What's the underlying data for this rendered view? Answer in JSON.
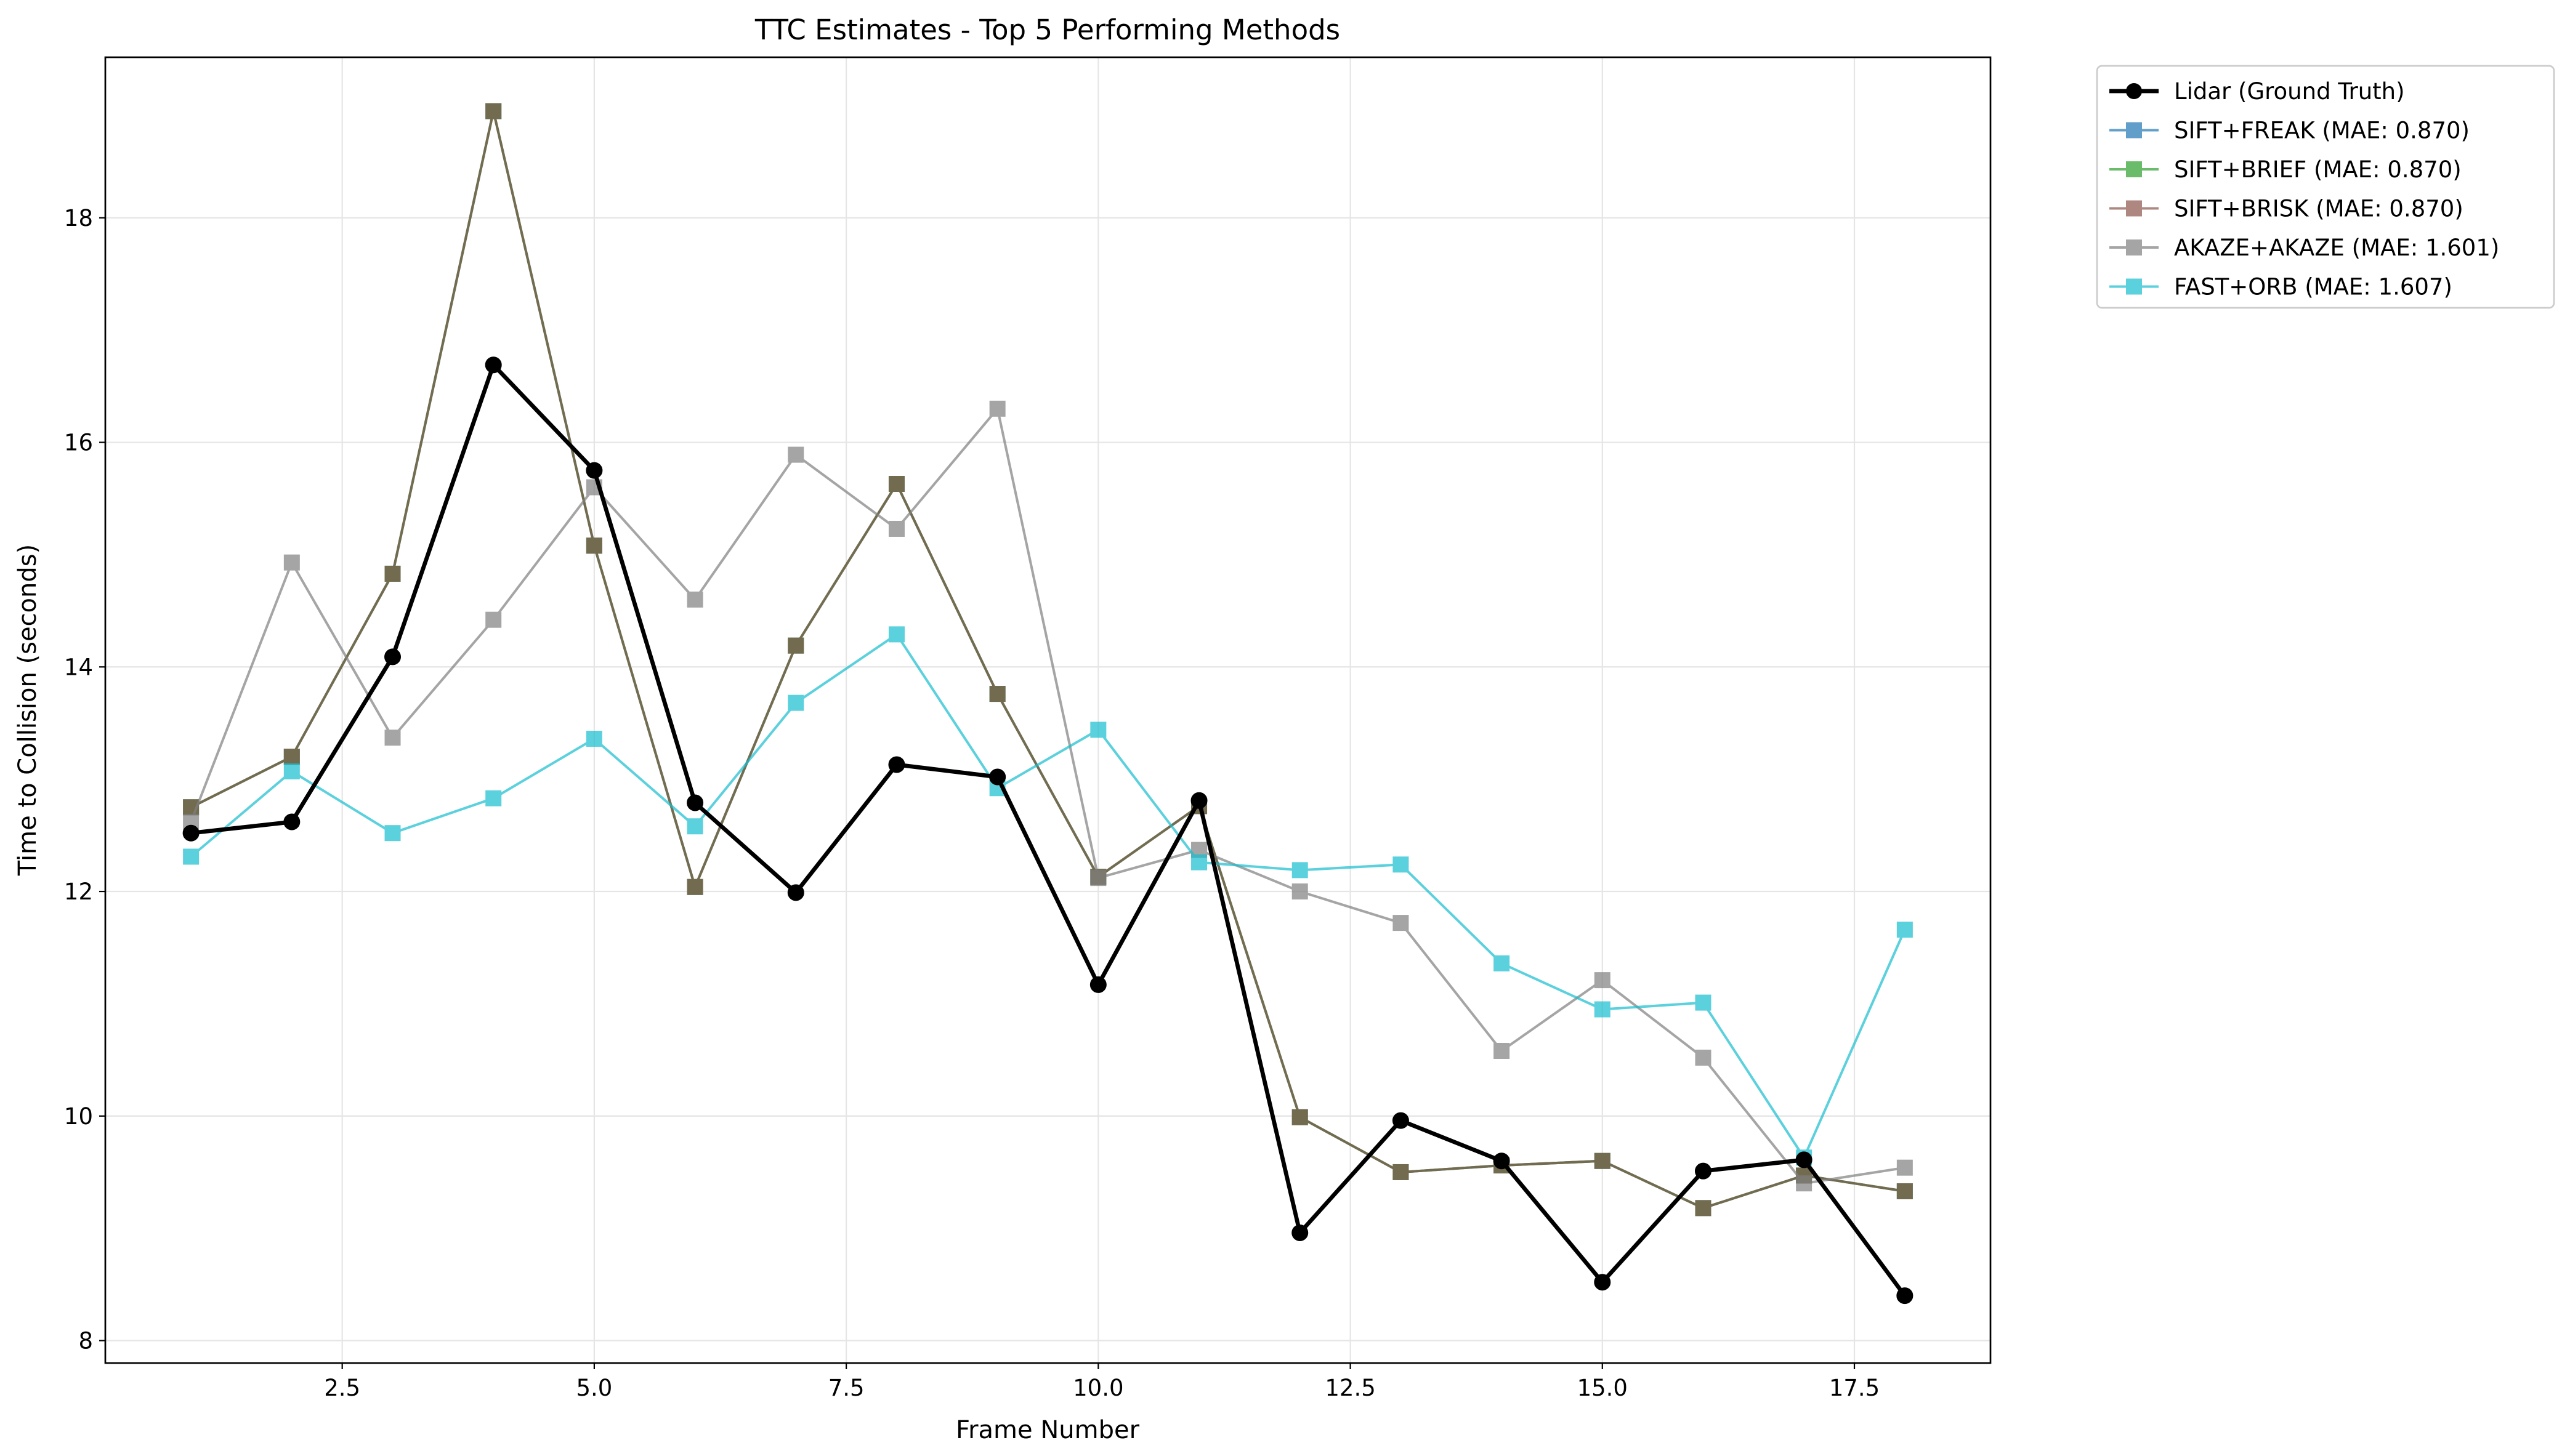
{
  "chart_data": {
    "type": "line",
    "title": "TTC Estimates - Top 5 Performing Methods",
    "xlabel": "Frame Number",
    "ylabel": "Time to Collision (seconds)",
    "xlim": [
      0.15,
      18.85
    ],
    "ylim": [
      7.8,
      19.43
    ],
    "xticks": [
      2.5,
      5.0,
      7.5,
      10.0,
      12.5,
      15.0,
      17.5
    ],
    "xtick_labels": [
      "2.5",
      "5.0",
      "7.5",
      "10.0",
      "12.5",
      "15.0",
      "17.5"
    ],
    "yticks": [
      8,
      10,
      12,
      14,
      16,
      18
    ],
    "ytick_labels": [
      "8",
      "10",
      "12",
      "14",
      "16",
      "18"
    ],
    "grid": true,
    "legend_position": "outside-top-right",
    "x": [
      1,
      2,
      3,
      4,
      5,
      6,
      7,
      8,
      9,
      10,
      11,
      12,
      13,
      14,
      15,
      16,
      17,
      18
    ],
    "series": [
      {
        "name": "SIFT+FREAK (MAE: 0.870)",
        "color": "#1f77b4",
        "marker": "square",
        "linewidth": 1.5,
        "opacity": 0.7,
        "values": [
          12.75,
          13.2,
          14.83,
          18.95,
          15.08,
          12.04,
          14.19,
          15.63,
          13.76,
          12.13,
          12.76,
          9.99,
          9.5,
          9.56,
          9.6,
          9.18,
          9.47,
          9.33
        ]
      },
      {
        "name": "SIFT+BRIEF (MAE: 0.870)",
        "color": "#2ca02c",
        "marker": "square",
        "linewidth": 1.5,
        "opacity": 0.7,
        "values": [
          12.75,
          13.2,
          14.83,
          18.95,
          15.08,
          12.04,
          14.19,
          15.63,
          13.76,
          12.13,
          12.76,
          9.99,
          9.5,
          9.56,
          9.6,
          9.18,
          9.47,
          9.33
        ]
      },
      {
        "name": "SIFT+BRISK (MAE: 0.870)",
        "color": "#8c564b",
        "marker": "square",
        "linewidth": 1.5,
        "opacity": 0.7,
        "values": [
          12.75,
          13.2,
          14.83,
          18.95,
          15.08,
          12.04,
          14.19,
          15.63,
          13.76,
          12.13,
          12.76,
          9.99,
          9.5,
          9.56,
          9.6,
          9.18,
          9.47,
          9.33
        ]
      },
      {
        "name": "AKAZE+AKAZE (MAE: 1.601)",
        "color": "#7f7f7f",
        "marker": "square",
        "linewidth": 1.5,
        "opacity": 0.7,
        "values": [
          12.62,
          14.93,
          13.37,
          14.42,
          15.6,
          14.6,
          15.89,
          15.23,
          16.3,
          12.12,
          12.37,
          12.0,
          11.72,
          10.58,
          11.21,
          10.52,
          9.4,
          9.54
        ]
      },
      {
        "name": "FAST+ORB (MAE: 1.607)",
        "color": "#17becf",
        "marker": "square",
        "linewidth": 1.5,
        "opacity": 0.7,
        "values": [
          12.31,
          13.07,
          12.52,
          12.83,
          13.36,
          12.58,
          13.68,
          14.29,
          12.92,
          13.44,
          12.26,
          12.19,
          12.24,
          11.36,
          10.95,
          11.01,
          9.63,
          11.66
        ]
      },
      {
        "name": "Lidar (Ground Truth)",
        "color": "#000000",
        "marker": "circle",
        "linewidth": 2.5,
        "opacity": 1.0,
        "values": [
          12.52,
          12.62,
          14.09,
          16.69,
          15.75,
          12.79,
          11.99,
          13.13,
          13.02,
          11.17,
          12.81,
          8.96,
          9.96,
          9.6,
          8.52,
          9.51,
          9.61,
          8.4
        ]
      }
    ],
    "legend_order": [
      "Lidar (Ground Truth)",
      "SIFT+FREAK (MAE: 0.870)",
      "SIFT+BRIEF (MAE: 0.870)",
      "SIFT+BRISK (MAE: 0.870)",
      "AKAZE+AKAZE (MAE: 1.601)",
      "FAST+ORB (MAE: 1.607)"
    ]
  }
}
